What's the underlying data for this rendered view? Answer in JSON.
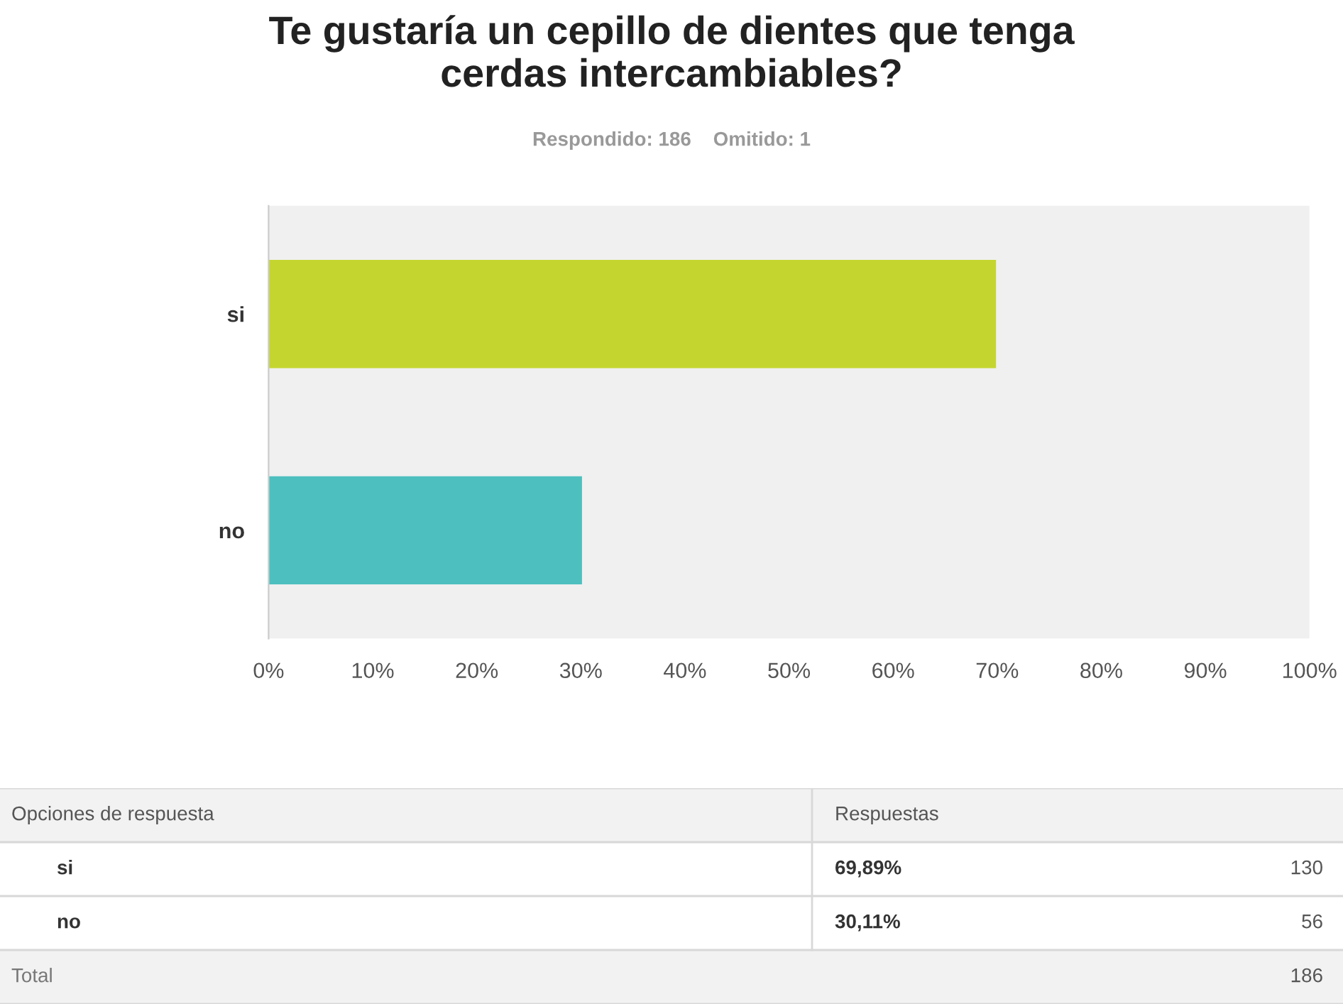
{
  "chart_data": {
    "type": "bar",
    "orientation": "horizontal",
    "title": "Te gustaría un cepillo de dientes que tenga\ncerdas intercambiables?",
    "subtitle": "Respondido: 186    Omitido: 1",
    "categories": [
      "si",
      "no"
    ],
    "values": [
      69.89,
      30.11
    ],
    "colors": [
      "#c5d530",
      "#4dbfbf"
    ],
    "xlim": [
      0,
      100
    ],
    "xticks": [
      {
        "value": 0,
        "label": "0%"
      },
      {
        "value": 10,
        "label": "10%"
      },
      {
        "value": 20,
        "label": "20%"
      },
      {
        "value": 30,
        "label": "30%"
      },
      {
        "value": 40,
        "label": "40%"
      },
      {
        "value": 50,
        "label": "50%"
      },
      {
        "value": 60,
        "label": "60%"
      },
      {
        "value": 70,
        "label": "70%"
      },
      {
        "value": 80,
        "label": "80%"
      },
      {
        "value": 90,
        "label": "90%"
      },
      {
        "value": 100,
        "label": "100%"
      }
    ],
    "grid": false,
    "legend": false,
    "annotations": [
      "Opciones de respuesta",
      "Respuestas",
      "130",
      "56",
      "Total",
      "186",
      "69,89%",
      "30,11%"
    ]
  }
}
